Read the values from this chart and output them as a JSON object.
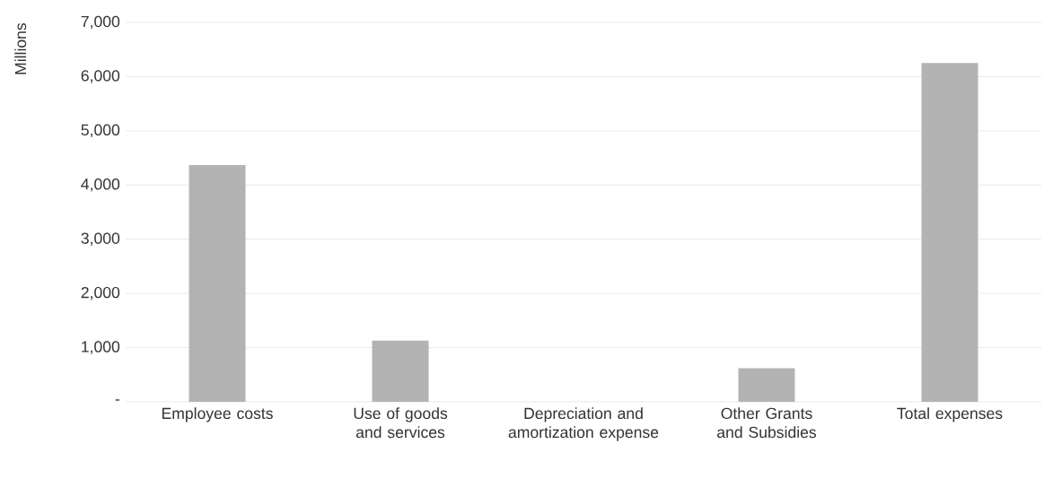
{
  "chart_data": {
    "type": "bar",
    "ylabel": "Millions",
    "categories": [
      "Employee costs",
      "Use of goods and services",
      "Depreciation and amortization expense",
      "Other Grants and Subsidies",
      "Total expenses"
    ],
    "values": [
      4370,
      1130,
      0,
      620,
      6250
    ],
    "color": "#b3b3b3",
    "ylim": [
      0,
      7000
    ],
    "yticks": [
      {
        "value": 0,
        "label": "-"
      },
      {
        "value": 1000,
        "label": "1,000"
      },
      {
        "value": 2000,
        "label": "2,000"
      },
      {
        "value": 3000,
        "label": "3,000"
      },
      {
        "value": 4000,
        "label": "4,000"
      },
      {
        "value": 5000,
        "label": "5,000"
      },
      {
        "value": 6000,
        "label": "6,000"
      },
      {
        "value": 7000,
        "label": "7,000"
      }
    ],
    "grid": "y"
  }
}
